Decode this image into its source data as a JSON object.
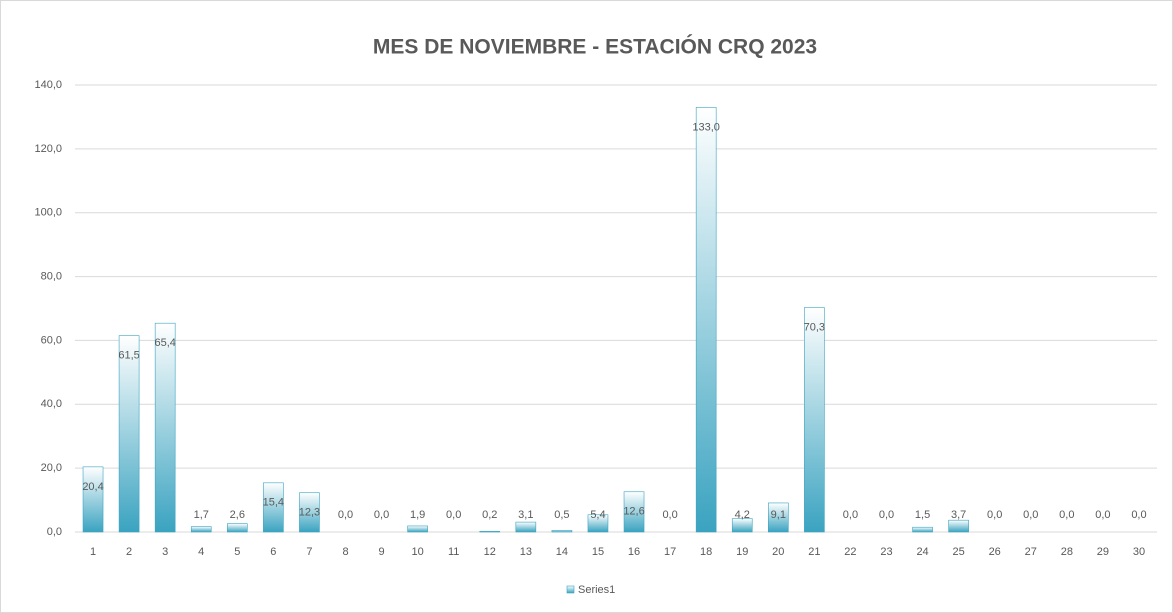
{
  "chart_data": {
    "type": "bar",
    "title": "MES DE NOVIEMBRE - ESTACIÓN CRQ 2023",
    "categories": [
      "1",
      "2",
      "3",
      "4",
      "5",
      "6",
      "7",
      "8",
      "9",
      "10",
      "11",
      "12",
      "13",
      "14",
      "15",
      "16",
      "17",
      "18",
      "19",
      "20",
      "21",
      "22",
      "23",
      "24",
      "25",
      "26",
      "27",
      "28",
      "29",
      "30"
    ],
    "values": [
      20.4,
      61.5,
      65.4,
      1.7,
      2.6,
      15.4,
      12.3,
      0,
      0,
      1.9,
      0,
      0.2,
      3.1,
      0.5,
      5.4,
      12.6,
      0,
      133.0,
      4.2,
      9.1,
      70.3,
      0,
      0,
      1.5,
      3.7,
      0,
      0,
      0,
      0,
      0
    ],
    "value_labels": [
      "20,4",
      "61,5",
      "65,4",
      "1,7",
      "2,6",
      "15,4",
      "12,3",
      "0,0",
      "0,0",
      "1,9",
      "0,0",
      "0,2",
      "3,1",
      "0,5",
      "5,4",
      "12,6",
      "0,0",
      "133,0",
      "4,2",
      "9,1",
      "70,3",
      "0,0",
      "0,0",
      "1,5",
      "3,7",
      "0,0",
      "0,0",
      "0,0",
      "0,0",
      "0,0"
    ],
    "series_name": "Series1",
    "color": "#3aa3c0",
    "ylim": [
      0,
      140
    ],
    "yticks": [
      {
        "value": 0,
        "label": "0,0"
      },
      {
        "value": 20,
        "label": "20,0"
      },
      {
        "value": 40,
        "label": "40,0"
      },
      {
        "value": 60,
        "label": "60,0"
      },
      {
        "value": 80,
        "label": "80,0"
      },
      {
        "value": 100,
        "label": "100,0"
      },
      {
        "value": 120,
        "label": "120,0"
      },
      {
        "value": 140,
        "label": "140,0"
      }
    ],
    "grid": true
  }
}
